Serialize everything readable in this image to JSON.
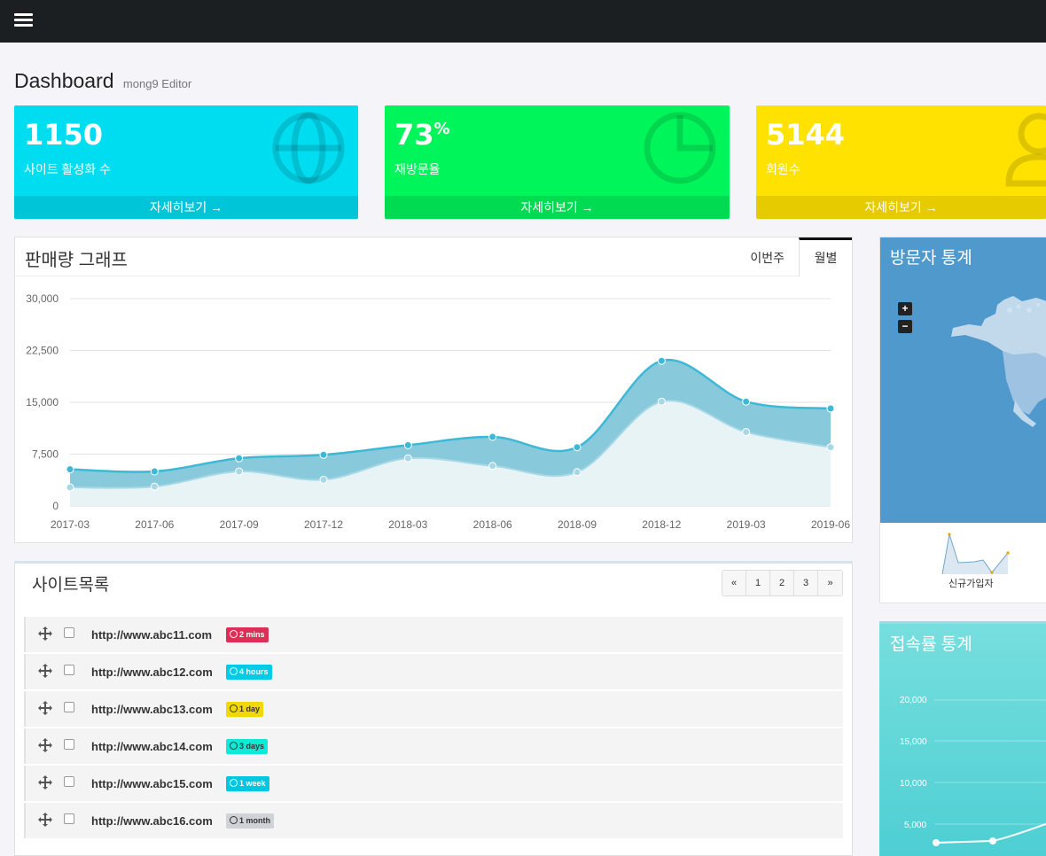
{
  "header": {
    "title": "Dashboard",
    "subtitle": "mong9 Editor"
  },
  "stats": [
    {
      "value": "1150",
      "suffix": "",
      "label": "사이트 활성화 수",
      "link": "자세히보기 →",
      "color": "#00dcf0",
      "footer_color": "#00c4d8",
      "icon": "globe-icon"
    },
    {
      "value": "73",
      "suffix": "%",
      "label": "재방문율",
      "link": "자세히보기 →",
      "color": "#00f55a",
      "footer_color": "#00db52",
      "icon": "pie-chart-icon"
    },
    {
      "value": "5144",
      "suffix": "",
      "label": "회원수",
      "link": "자세히보기 →",
      "color": "#ffe200",
      "footer_color": "#e6cb00",
      "icon": "user-icon"
    }
  ],
  "sales": {
    "title": "판매량 그래프",
    "tabs": [
      "이번주",
      "월별"
    ],
    "active_tab": 1
  },
  "chart_data": {
    "type": "area",
    "x": [
      "2017-03",
      "2017-06",
      "2017-09",
      "2017-12",
      "2018-03",
      "2018-06",
      "2018-09",
      "2018-12",
      "2019-03",
      "2019-06"
    ],
    "series": [
      {
        "values": [
          5300,
          5000,
          6900,
          7400,
          8800,
          10000,
          8500,
          21000,
          15100,
          14100
        ]
      },
      {
        "values": [
          2700,
          2800,
          5000,
          3800,
          6900,
          5800,
          4900,
          15100,
          10700,
          8500
        ]
      }
    ],
    "yticks": [
      0,
      7500,
      15000,
      22500,
      30000
    ],
    "ytick_labels": [
      "0",
      "7,500",
      "15,000",
      "22,500",
      "30,000"
    ],
    "ylim": [
      0,
      30000
    ],
    "colors": {
      "outer_line": "#3db9d8",
      "outer_fill": "#88c9db",
      "inner_line": "#a7d8e6",
      "inner_fill": "#e8f3f6"
    },
    "grid": true
  },
  "sites": {
    "title": "사이트목록",
    "pager": [
      "«",
      "1",
      "2",
      "3",
      "»"
    ],
    "rows": [
      {
        "url": "http://www.abc11.com",
        "badge": "2 mins",
        "color": "#dd2e55"
      },
      {
        "url": "http://www.abc12.com",
        "badge": "4 hours",
        "color": "#00cbe6"
      },
      {
        "url": "http://www.abc13.com",
        "badge": "1 day",
        "color": "#f0d800"
      },
      {
        "url": "http://www.abc14.com",
        "badge": "3 days",
        "color": "#10e8d8"
      },
      {
        "url": "http://www.abc15.com",
        "badge": "1 week",
        "color": "#00c7e0"
      },
      {
        "url": "http://www.abc16.com",
        "badge": "1 month",
        "color": "#cfd3d8"
      }
    ]
  },
  "visitors": {
    "title": "방문자 통계",
    "zoom_in": "+",
    "zoom_out": "−",
    "sparkline_label": "신규가입자"
  },
  "access": {
    "title": "접속률 통계",
    "ytick_labels": [
      "20,000",
      "15,000",
      "10,000",
      "5,000"
    ]
  }
}
